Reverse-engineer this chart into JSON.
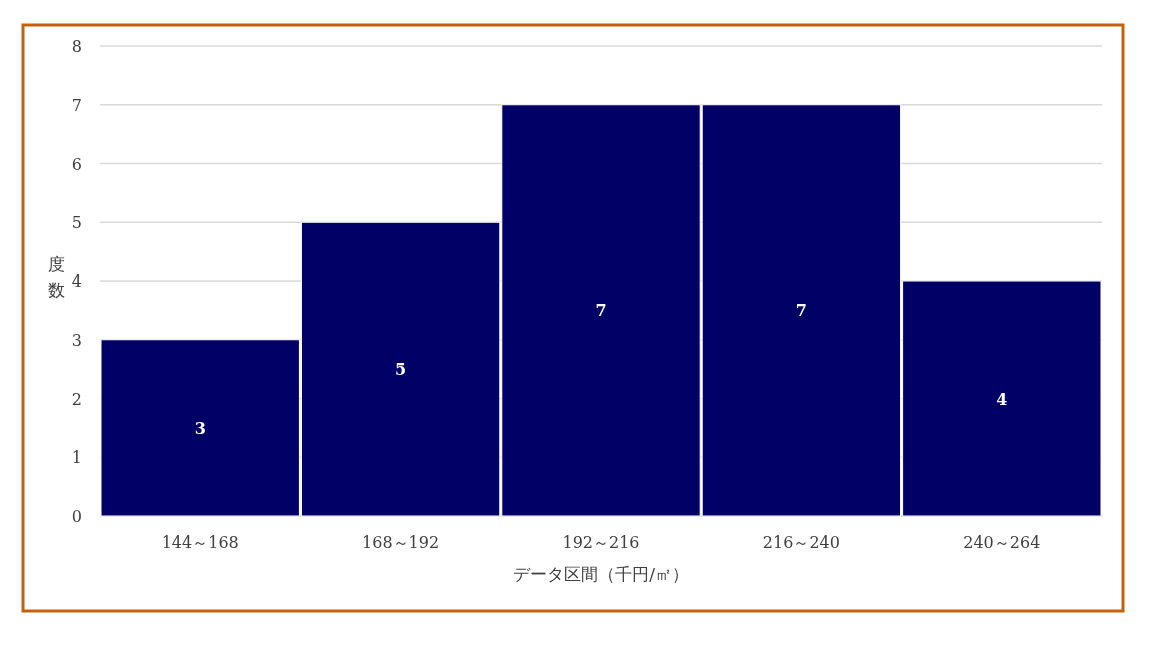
{
  "chart_data": {
    "type": "bar",
    "xlabel": "データ区間（千円/㎡）",
    "ylabel": "度数",
    "categories": [
      "144～168",
      "168～192",
      "192～216",
      "216～240",
      "240～264"
    ],
    "values": [
      3,
      5,
      7,
      7,
      4
    ],
    "color": "#000066",
    "ylim": [
      0,
      8
    ],
    "yticks": [
      0,
      1,
      2,
      3,
      4,
      5,
      6,
      7,
      8
    ],
    "grid": "y",
    "data_labels": true
  }
}
